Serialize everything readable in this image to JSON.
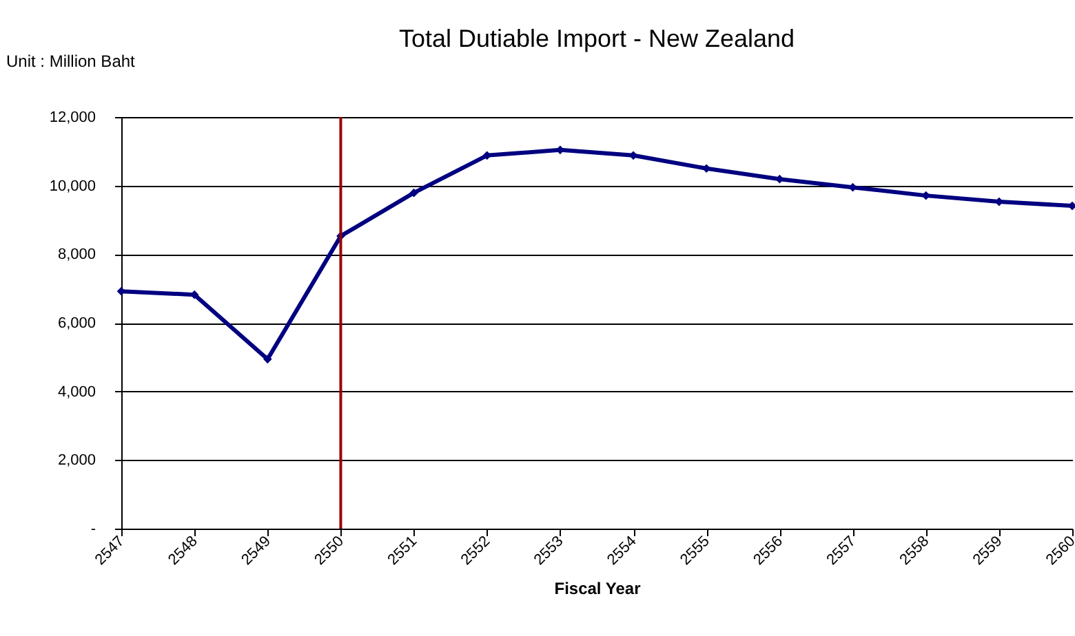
{
  "chart_data": {
    "type": "line",
    "title": "Total Dutiable Import - New Zealand",
    "ylabel": "Unit : Million Baht",
    "xlabel": "Fiscal Year",
    "categories": [
      "2547",
      "2548",
      "2549",
      "2550",
      "2551",
      "2552",
      "2553",
      "2554",
      "2555",
      "2556",
      "2557",
      "2558",
      "2559",
      "2560"
    ],
    "series": [
      {
        "color": "#000080",
        "values": [
          6920,
          6820,
          4940,
          8530,
          9790,
          10880,
          11040,
          10880,
          10500,
          10190,
          9950,
          9710,
          9530,
          9410
        ]
      }
    ],
    "ylim": [
      0,
      12000
    ],
    "yticks": [
      {
        "value": 0,
        "label": "-"
      },
      {
        "value": 2000,
        "label": "2,000"
      },
      {
        "value": 4000,
        "label": "4,000"
      },
      {
        "value": 6000,
        "label": "6,000"
      },
      {
        "value": 8000,
        "label": "8,000"
      },
      {
        "value": 10000,
        "label": "10,000"
      },
      {
        "value": 12000,
        "label": "12,000"
      }
    ],
    "ref_lines": [
      {
        "axis": "x",
        "value": "2550",
        "color": "#990000"
      }
    ],
    "grid": "y",
    "marker": "diamond"
  }
}
